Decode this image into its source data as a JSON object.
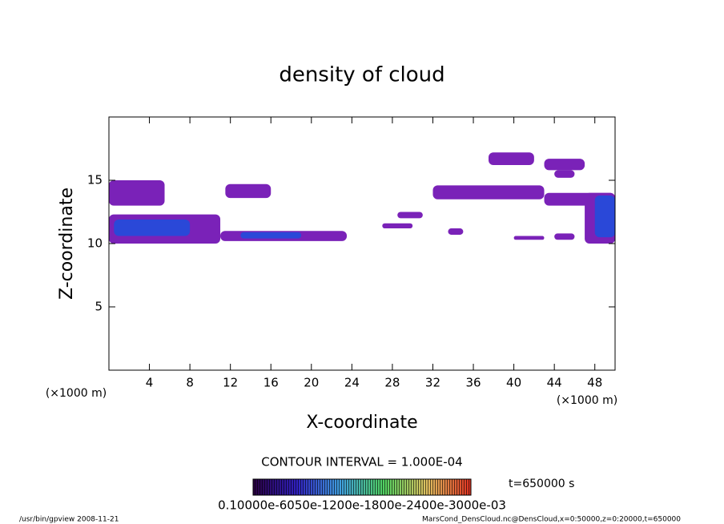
{
  "chart_data": {
    "type": "contour",
    "title": "density of cloud",
    "x_label": "X-coordinate",
    "y_label": "Z-coordinate",
    "x_unit": "(×1000 m)",
    "y_unit": "(×1000 m)",
    "xlim": [
      0,
      50
    ],
    "ylim": [
      0,
      20
    ],
    "xticks": [
      4,
      8,
      12,
      16,
      20,
      24,
      28,
      32,
      36,
      40,
      44,
      48
    ],
    "yticks": [
      5,
      10,
      15
    ],
    "contour_interval": "CONTOUR INTERVAL = 1.000E-04",
    "time_label": "t=650000 s",
    "colorbar_label": "0.10000e-6050e-1200e-1800e-2400e-3000e-03",
    "footer_left": "/usr/bin/gpview   2008-11-21",
    "footer_right": "MarsCond_DensCloud.nc@DensCloud,x=0:50000,z=0:20000,t=650000",
    "cells": [
      {
        "x": [
          0,
          5.5
        ],
        "z": [
          13,
          15
        ],
        "value": 0.0001,
        "color": "#7a22b8"
      },
      {
        "x": [
          0,
          11
        ],
        "z": [
          10,
          12.3
        ],
        "value": 0.0001,
        "color": "#7a22b8"
      },
      {
        "x": [
          0.5,
          8
        ],
        "z": [
          10.6,
          11.9
        ],
        "value": 0.0003,
        "color": "#2a48d8"
      },
      {
        "x": [
          11,
          23.5
        ],
        "z": [
          10.2,
          11
        ],
        "value": 0.0001,
        "color": "#7a22b8"
      },
      {
        "x": [
          13,
          19
        ],
        "z": [
          10.4,
          10.9
        ],
        "value": 0.0003,
        "color": "#2a48d8"
      },
      {
        "x": [
          11.5,
          16
        ],
        "z": [
          13.6,
          14.7
        ],
        "value": 0.0001,
        "color": "#7a22b8"
      },
      {
        "x": [
          27,
          30
        ],
        "z": [
          11.2,
          11.6
        ],
        "value": 0.0001,
        "color": "#7a22b8"
      },
      {
        "x": [
          28.5,
          31
        ],
        "z": [
          12,
          12.5
        ],
        "value": 0.0001,
        "color": "#7a22b8"
      },
      {
        "x": [
          33.5,
          35
        ],
        "z": [
          10.7,
          11.2
        ],
        "value": 0.0001,
        "color": "#7a22b8"
      },
      {
        "x": [
          32,
          43
        ],
        "z": [
          13.5,
          14.6
        ],
        "value": 0.0001,
        "color": "#7a22b8"
      },
      {
        "x": [
          37.5,
          42
        ],
        "z": [
          16.2,
          17.2
        ],
        "value": 0.0001,
        "color": "#7a22b8"
      },
      {
        "x": [
          43,
          47
        ],
        "z": [
          15.8,
          16.7
        ],
        "value": 0.0001,
        "color": "#7a22b8"
      },
      {
        "x": [
          44,
          46
        ],
        "z": [
          15.2,
          15.8
        ],
        "value": 0.0001,
        "color": "#7a22b8"
      },
      {
        "x": [
          40,
          43
        ],
        "z": [
          10.3,
          10.6
        ],
        "value": 0.0001,
        "color": "#7a22b8"
      },
      {
        "x": [
          44,
          46
        ],
        "z": [
          10.3,
          10.8
        ],
        "value": 0.0001,
        "color": "#7a22b8"
      },
      {
        "x": [
          43,
          50
        ],
        "z": [
          13,
          14
        ],
        "value": 0.0001,
        "color": "#7a22b8"
      },
      {
        "x": [
          47,
          50
        ],
        "z": [
          10,
          14
        ],
        "value": 0.0001,
        "color": "#7a22b8"
      },
      {
        "x": [
          48,
          50
        ],
        "z": [
          10.5,
          13.8
        ],
        "value": 0.0003,
        "color": "#2a48d8"
      }
    ]
  }
}
